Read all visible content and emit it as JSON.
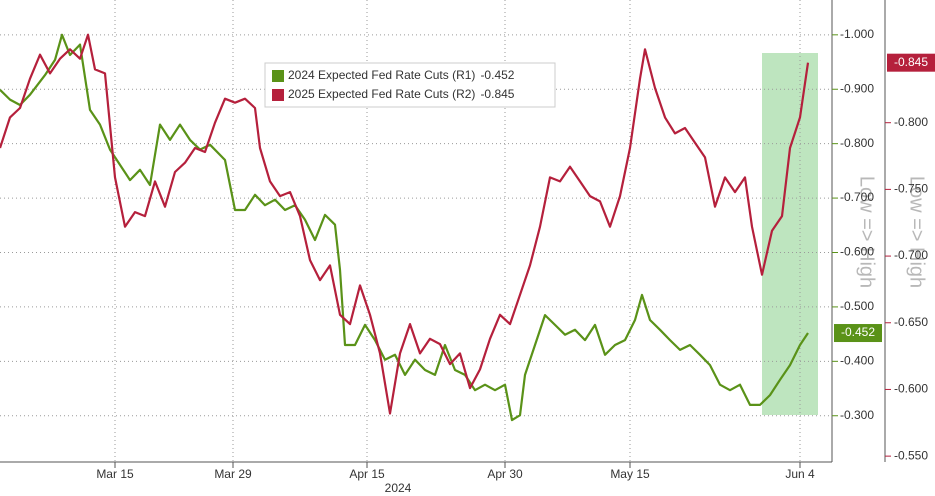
{
  "chart_data": {
    "type": "line",
    "x_label": "2024",
    "y_label": "Low => High",
    "y2_label": "Low => High",
    "xlim": [
      0,
      83.2
    ],
    "xticks": [
      {
        "value": 11.5,
        "label": "Mar 15"
      },
      {
        "value": 23.3,
        "label": "Mar 29"
      },
      {
        "value": 36.7,
        "label": "Apr 15"
      },
      {
        "value": 50.5,
        "label": "Apr 30"
      },
      {
        "value": 63,
        "label": "May 15"
      },
      {
        "value": 80,
        "label": "Jun 4"
      }
    ],
    "ylim": [
      -0.215,
      -1.064
    ],
    "yticks": [
      {
        "value": -1.0,
        "label": "-1.000"
      },
      {
        "value": -0.9,
        "label": "-0.900"
      },
      {
        "value": -0.8,
        "label": "-0.800"
      },
      {
        "value": -0.7,
        "label": "-0.700"
      },
      {
        "value": -0.6,
        "label": "-0.600"
      },
      {
        "value": -0.5,
        "label": "-0.500"
      },
      {
        "value": -0.4,
        "label": "-0.400"
      },
      {
        "value": -0.3,
        "label": "-0.300"
      }
    ],
    "y2lim": [
      -0.5456,
      -0.892
    ],
    "y2ticks": [
      {
        "value": -0.8,
        "label": "-0.800"
      },
      {
        "value": -0.75,
        "label": "-0.750"
      },
      {
        "value": -0.7,
        "label": "-0.700"
      },
      {
        "value": -0.65,
        "label": "-0.650"
      },
      {
        "value": -0.6,
        "label": "-0.600"
      },
      {
        "value": -0.55,
        "label": "-0.550"
      }
    ],
    "grid": true,
    "series": [
      {
        "name": "2024 Expected Fed Rate Cuts (R1)",
        "last_label": "-0.452",
        "axis": "y",
        "color": "#5a9218",
        "x": [
          0,
          1,
          2,
          3,
          4.5,
          5.5,
          6.2,
          7,
          8,
          9,
          10,
          11,
          12,
          13,
          14,
          15,
          16,
          17,
          18,
          19,
          20,
          21,
          22.5,
          23.5,
          24.5,
          25.5,
          26.5,
          27.5,
          28.5,
          29.5,
          30.5,
          31.5,
          32.5,
          33.5,
          34,
          34.5,
          35.5,
          36.5,
          37.5,
          38.5,
          39.5,
          40.5,
          41.5,
          42.5,
          43.5,
          44.5,
          45.5,
          46.5,
          47.5,
          48.5,
          49.5,
          50.5,
          51.2,
          52,
          52.5,
          53.5,
          54.5,
          55.5,
          56.5,
          57.5,
          58.5,
          59.5,
          60.5,
          61.5,
          62.5,
          63.5,
          64.2,
          65,
          66,
          67,
          68,
          69,
          70,
          71,
          72,
          73,
          74,
          75,
          76,
          77,
          78,
          79,
          80,
          80.8
        ],
        "values": [
          -0.899,
          -0.881,
          -0.871,
          -0.89,
          -0.926,
          -0.954,
          -1.0,
          -0.963,
          -0.982,
          -0.862,
          -0.835,
          -0.789,
          -0.761,
          -0.733,
          -0.752,
          -0.724,
          -0.835,
          -0.807,
          -0.835,
          -0.807,
          -0.789,
          -0.798,
          -0.77,
          -0.678,
          -0.678,
          -0.706,
          -0.687,
          -0.697,
          -0.678,
          -0.687,
          -0.66,
          -0.623,
          -0.669,
          -0.651,
          -0.568,
          -0.43,
          -0.43,
          -0.467,
          -0.439,
          -0.403,
          -0.412,
          -0.375,
          -0.403,
          -0.384,
          -0.375,
          -0.43,
          -0.384,
          -0.375,
          -0.347,
          -0.357,
          -0.347,
          -0.357,
          -0.292,
          -0.301,
          -0.375,
          -0.43,
          -0.485,
          -0.467,
          -0.449,
          -0.458,
          -0.439,
          -0.467,
          -0.412,
          -0.43,
          -0.439,
          -0.476,
          -0.522,
          -0.476,
          -0.458,
          -0.439,
          -0.421,
          -0.43,
          -0.412,
          -0.393,
          -0.357,
          -0.347,
          -0.357,
          -0.32,
          -0.32,
          -0.338,
          -0.366,
          -0.393,
          -0.43,
          -0.452
        ]
      },
      {
        "name": "2025 Expected Fed Rate Cuts (R2)",
        "last_label": "-0.845",
        "axis": "y2",
        "color": "#b5203c",
        "x": [
          0,
          1,
          2,
          3,
          4,
          5,
          6,
          7,
          8,
          8.8,
          9.5,
          10.5,
          11.5,
          12.5,
          13.5,
          14.5,
          15.5,
          16.5,
          17.5,
          18.5,
          19.5,
          20.5,
          21.5,
          22.5,
          23.5,
          24.5,
          25.5,
          26,
          27,
          28,
          29,
          30,
          31,
          32,
          33,
          34,
          35,
          36,
          37,
          38,
          39,
          40,
          41,
          42,
          43,
          44,
          45,
          46,
          47,
          48,
          49,
          50,
          51,
          52,
          53,
          54,
          55,
          56,
          57,
          58,
          59,
          60,
          61,
          62,
          63,
          64,
          64.5,
          65.5,
          66.5,
          67.5,
          68.5,
          69.5,
          70.5,
          71.5,
          72.5,
          73.5,
          74.5,
          75.2,
          76.2,
          77.2,
          78.2,
          79,
          80,
          80.8
        ],
        "values": [
          -0.781,
          -0.804,
          -0.811,
          -0.833,
          -0.851,
          -0.837,
          -0.848,
          -0.855,
          -0.848,
          -0.866,
          -0.84,
          -0.837,
          -0.759,
          -0.722,
          -0.733,
          -0.73,
          -0.756,
          -0.737,
          -0.763,
          -0.77,
          -0.781,
          -0.778,
          -0.8,
          -0.818,
          -0.815,
          -0.818,
          -0.811,
          -0.781,
          -0.756,
          -0.745,
          -0.748,
          -0.73,
          -0.697,
          -0.682,
          -0.693,
          -0.656,
          -0.649,
          -0.678,
          -0.656,
          -0.627,
          -0.582,
          -0.627,
          -0.649,
          -0.627,
          -0.638,
          -0.634,
          -0.619,
          -0.627,
          -0.601,
          -0.615,
          -0.638,
          -0.656,
          -0.649,
          -0.671,
          -0.693,
          -0.722,
          -0.759,
          -0.756,
          -0.767,
          -0.756,
          -0.745,
          -0.741,
          -0.722,
          -0.745,
          -0.781,
          -0.833,
          -0.855,
          -0.826,
          -0.804,
          -0.792,
          -0.796,
          -0.785,
          -0.774,
          -0.737,
          -0.759,
          -0.748,
          -0.759,
          -0.722,
          -0.686,
          -0.719,
          -0.73,
          -0.781,
          -0.804,
          -0.845
        ]
      }
    ]
  }
}
